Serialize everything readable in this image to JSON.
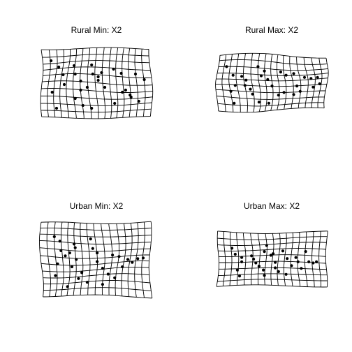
{
  "panels": [
    {
      "title": "Rural Min: X2",
      "grid": {
        "cols": 16,
        "rows": 10,
        "warp": 2.2
      },
      "landmarks": [
        [
          0.09,
          0.18
        ],
        [
          0.16,
          0.27
        ],
        [
          0.2,
          0.38
        ],
        [
          0.21,
          0.52
        ],
        [
          0.1,
          0.63
        ],
        [
          0.14,
          0.86
        ],
        [
          0.3,
          0.25
        ],
        [
          0.31,
          0.37
        ],
        [
          0.36,
          0.47
        ],
        [
          0.36,
          0.6
        ],
        [
          0.42,
          0.56
        ],
        [
          0.38,
          0.82
        ],
        [
          0.46,
          0.24
        ],
        [
          0.47,
          0.37
        ],
        [
          0.52,
          0.41
        ],
        [
          0.55,
          0.35
        ],
        [
          0.52,
          0.46
        ],
        [
          0.58,
          0.56
        ],
        [
          0.66,
          0.3
        ],
        [
          0.73,
          0.36
        ],
        [
          0.74,
          0.63
        ],
        [
          0.77,
          0.6
        ],
        [
          0.81,
          0.67
        ],
        [
          0.82,
          0.7
        ],
        [
          0.67,
          0.79
        ],
        [
          0.89,
          0.76
        ],
        [
          0.94,
          0.45
        ],
        [
          0.86,
          0.37
        ],
        [
          0.31,
          0.72
        ],
        [
          0.46,
          0.86
        ]
      ]
    },
    {
      "title": "Rural Max: X2",
      "grid": {
        "cols": 16,
        "rows": 9,
        "warp": 2.4
      },
      "landmarks": [
        [
          0.08,
          0.2
        ],
        [
          0.14,
          0.36
        ],
        [
          0.16,
          0.55
        ],
        [
          0.12,
          0.66
        ],
        [
          0.15,
          0.88
        ],
        [
          0.22,
          0.38
        ],
        [
          0.26,
          0.45
        ],
        [
          0.25,
          0.55
        ],
        [
          0.3,
          0.62
        ],
        [
          0.32,
          0.71
        ],
        [
          0.37,
          0.2
        ],
        [
          0.4,
          0.37
        ],
        [
          0.43,
          0.28
        ],
        [
          0.46,
          0.44
        ],
        [
          0.5,
          0.56
        ],
        [
          0.38,
          0.86
        ],
        [
          0.47,
          0.88
        ],
        [
          0.58,
          0.3
        ],
        [
          0.63,
          0.36
        ],
        [
          0.61,
          0.68
        ],
        [
          0.7,
          0.72
        ],
        [
          0.73,
          0.56
        ],
        [
          0.76,
          0.66
        ],
        [
          0.8,
          0.4
        ],
        [
          0.86,
          0.42
        ],
        [
          0.88,
          0.58
        ],
        [
          0.94,
          0.52
        ],
        [
          0.56,
          0.73
        ],
        [
          0.7,
          0.33
        ],
        [
          0.92,
          0.4
        ]
      ]
    },
    {
      "title": "Urban Min: X2",
      "grid": {
        "cols": 16,
        "rows": 11,
        "warp": 2.3
      },
      "landmarks": [
        [
          0.12,
          0.19
        ],
        [
          0.17,
          0.25
        ],
        [
          0.18,
          0.38
        ],
        [
          0.22,
          0.45
        ],
        [
          0.15,
          0.56
        ],
        [
          0.13,
          0.72
        ],
        [
          0.3,
          0.29
        ],
        [
          0.26,
          0.41
        ],
        [
          0.32,
          0.5
        ],
        [
          0.28,
          0.6
        ],
        [
          0.37,
          0.68
        ],
        [
          0.34,
          0.76
        ],
        [
          0.45,
          0.22
        ],
        [
          0.47,
          0.35
        ],
        [
          0.51,
          0.41
        ],
        [
          0.51,
          0.53
        ],
        [
          0.56,
          0.62
        ],
        [
          0.61,
          0.7
        ],
        [
          0.65,
          0.44
        ],
        [
          0.71,
          0.46
        ],
        [
          0.74,
          0.6
        ],
        [
          0.79,
          0.5
        ],
        [
          0.83,
          0.54
        ],
        [
          0.88,
          0.49
        ],
        [
          0.67,
          0.75
        ],
        [
          0.42,
          0.81
        ],
        [
          0.93,
          0.48
        ],
        [
          0.24,
          0.87
        ],
        [
          0.31,
          0.34
        ],
        [
          0.56,
          0.84
        ]
      ]
    },
    {
      "title": "Urban Max: X2",
      "grid": {
        "cols": 16,
        "rows": 9,
        "warp": 1.6
      },
      "landmarks": [
        [
          0.13,
          0.3
        ],
        [
          0.16,
          0.41
        ],
        [
          0.22,
          0.47
        ],
        [
          0.22,
          0.55
        ],
        [
          0.18,
          0.7
        ],
        [
          0.2,
          0.81
        ],
        [
          0.31,
          0.44
        ],
        [
          0.33,
          0.5
        ],
        [
          0.35,
          0.57
        ],
        [
          0.38,
          0.63
        ],
        [
          0.42,
          0.7
        ],
        [
          0.43,
          0.8
        ],
        [
          0.45,
          0.25
        ],
        [
          0.49,
          0.43
        ],
        [
          0.51,
          0.4
        ],
        [
          0.53,
          0.56
        ],
        [
          0.53,
          0.66
        ],
        [
          0.56,
          0.73
        ],
        [
          0.6,
          0.35
        ],
        [
          0.64,
          0.49
        ],
        [
          0.68,
          0.62
        ],
        [
          0.72,
          0.47
        ],
        [
          0.74,
          0.55
        ],
        [
          0.77,
          0.67
        ],
        [
          0.81,
          0.36
        ],
        [
          0.84,
          0.55
        ],
        [
          0.88,
          0.57
        ],
        [
          0.63,
          0.78
        ],
        [
          0.43,
          0.36
        ],
        [
          0.91,
          0.55
        ]
      ]
    }
  ]
}
